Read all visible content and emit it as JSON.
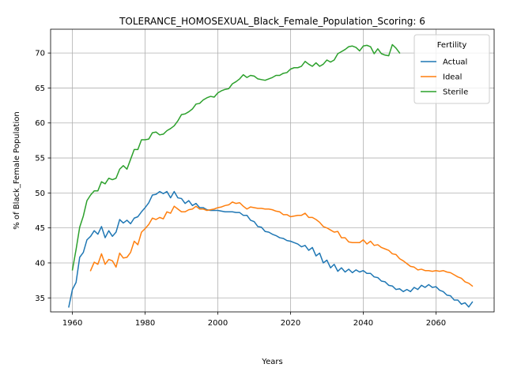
{
  "chart_data": {
    "type": "line",
    "title": "TOLERANCE_HOMOSEXUAL_Black_Female_Population_Scoring: 6",
    "xlabel": "Years",
    "ylabel": "% of Black_Female Population",
    "xlim": [
      1954,
      2076
    ],
    "ylim": [
      33.0,
      73.4
    ],
    "xticks": [
      1960,
      1980,
      2000,
      2020,
      2040,
      2060
    ],
    "yticks": [
      35,
      40,
      45,
      50,
      55,
      60,
      65,
      70
    ],
    "grid": true,
    "legend": {
      "title": "Fertility",
      "position": "top-right"
    },
    "series": [
      {
        "name": "Actual",
        "color": "#1f77b4",
        "points": [
          [
            1959,
            33.7
          ],
          [
            1960,
            36.2
          ],
          [
            1961,
            37.2
          ],
          [
            1962,
            40.8
          ],
          [
            1963,
            41.5
          ],
          [
            1964,
            43.3
          ],
          [
            1965,
            43.8
          ],
          [
            1966,
            44.6
          ],
          [
            1967,
            44.1
          ],
          [
            1968,
            45.2
          ],
          [
            1969,
            43.6
          ],
          [
            1970,
            44.6
          ],
          [
            1971,
            43.8
          ],
          [
            1972,
            44.4
          ],
          [
            1973,
            46.2
          ],
          [
            1974,
            45.7
          ],
          [
            1975,
            46.1
          ],
          [
            1976,
            45.6
          ],
          [
            1977,
            46.4
          ],
          [
            1978,
            46.6
          ],
          [
            1979,
            47.3
          ],
          [
            1980,
            47.9
          ],
          [
            1981,
            48.6
          ],
          [
            1982,
            49.7
          ],
          [
            1983,
            49.8
          ],
          [
            1984,
            50.2
          ],
          [
            1985,
            49.9
          ],
          [
            1986,
            50.2
          ],
          [
            1987,
            49.3
          ],
          [
            1988,
            50.2
          ],
          [
            1989,
            49.3
          ],
          [
            1990,
            49.2
          ],
          [
            1991,
            48.5
          ],
          [
            1992,
            48.9
          ],
          [
            1993,
            48.2
          ],
          [
            1994,
            48.5
          ],
          [
            1995,
            47.9
          ],
          [
            1996,
            47.9
          ],
          [
            1997,
            47.6
          ],
          [
            1998,
            47.5
          ],
          [
            1999,
            47.5
          ],
          [
            2000,
            47.5
          ],
          [
            2001,
            47.4
          ],
          [
            2002,
            47.3
          ],
          [
            2003,
            47.3
          ],
          [
            2004,
            47.3
          ],
          [
            2005,
            47.2
          ],
          [
            2006,
            47.2
          ],
          [
            2007,
            46.8
          ],
          [
            2008,
            46.8
          ],
          [
            2009,
            46.1
          ],
          [
            2010,
            45.9
          ],
          [
            2011,
            45.2
          ],
          [
            2012,
            45.1
          ],
          [
            2013,
            44.5
          ],
          [
            2014,
            44.4
          ],
          [
            2015,
            44.1
          ],
          [
            2016,
            43.9
          ],
          [
            2017,
            43.6
          ],
          [
            2018,
            43.5
          ],
          [
            2019,
            43.2
          ],
          [
            2020,
            43.1
          ],
          [
            2021,
            42.9
          ],
          [
            2022,
            42.7
          ],
          [
            2023,
            42.3
          ],
          [
            2024,
            42.5
          ],
          [
            2025,
            41.8
          ],
          [
            2026,
            42.2
          ],
          [
            2027,
            41.0
          ],
          [
            2028,
            41.4
          ],
          [
            2029,
            40.0
          ],
          [
            2030,
            40.4
          ],
          [
            2031,
            39.3
          ],
          [
            2032,
            39.8
          ],
          [
            2033,
            38.8
          ],
          [
            2034,
            39.3
          ],
          [
            2035,
            38.7
          ],
          [
            2036,
            39.1
          ],
          [
            2037,
            38.6
          ],
          [
            2038,
            39.0
          ],
          [
            2039,
            38.7
          ],
          [
            2040,
            38.9
          ],
          [
            2041,
            38.5
          ],
          [
            2042,
            38.5
          ],
          [
            2043,
            38.0
          ],
          [
            2044,
            37.9
          ],
          [
            2045,
            37.4
          ],
          [
            2046,
            37.3
          ],
          [
            2047,
            36.8
          ],
          [
            2048,
            36.7
          ],
          [
            2049,
            36.2
          ],
          [
            2050,
            36.3
          ],
          [
            2051,
            35.9
          ],
          [
            2052,
            36.2
          ],
          [
            2053,
            35.9
          ],
          [
            2054,
            36.5
          ],
          [
            2055,
            36.2
          ],
          [
            2056,
            36.8
          ],
          [
            2057,
            36.5
          ],
          [
            2058,
            36.9
          ],
          [
            2059,
            36.5
          ],
          [
            2060,
            36.6
          ],
          [
            2061,
            36.1
          ],
          [
            2062,
            35.9
          ],
          [
            2063,
            35.4
          ],
          [
            2064,
            35.3
          ],
          [
            2065,
            34.7
          ],
          [
            2066,
            34.7
          ],
          [
            2067,
            34.1
          ],
          [
            2068,
            34.3
          ],
          [
            2069,
            33.7
          ],
          [
            2070,
            34.4
          ]
        ]
      },
      {
        "name": "Ideal",
        "color": "#ff7f0e",
        "points": [
          [
            1965,
            38.9
          ],
          [
            1966,
            40.1
          ],
          [
            1967,
            39.8
          ],
          [
            1968,
            41.3
          ],
          [
            1969,
            39.8
          ],
          [
            1970,
            40.5
          ],
          [
            1971,
            40.3
          ],
          [
            1972,
            39.4
          ],
          [
            1973,
            41.4
          ],
          [
            1974,
            40.7
          ],
          [
            1975,
            40.8
          ],
          [
            1976,
            41.5
          ],
          [
            1977,
            43.1
          ],
          [
            1978,
            42.6
          ],
          [
            1979,
            44.4
          ],
          [
            1980,
            44.9
          ],
          [
            1981,
            45.5
          ],
          [
            1982,
            46.4
          ],
          [
            1983,
            46.2
          ],
          [
            1984,
            46.5
          ],
          [
            1985,
            46.3
          ],
          [
            1986,
            47.3
          ],
          [
            1987,
            47.1
          ],
          [
            1988,
            48.1
          ],
          [
            1989,
            47.7
          ],
          [
            1990,
            47.3
          ],
          [
            1991,
            47.3
          ],
          [
            1992,
            47.6
          ],
          [
            1993,
            47.7
          ],
          [
            1994,
            48.1
          ],
          [
            1995,
            47.7
          ],
          [
            1996,
            47.7
          ],
          [
            1997,
            47.5
          ],
          [
            1998,
            47.6
          ],
          [
            1999,
            47.7
          ],
          [
            2000,
            47.9
          ],
          [
            2001,
            48.0
          ],
          [
            2002,
            48.2
          ],
          [
            2003,
            48.3
          ],
          [
            2004,
            48.7
          ],
          [
            2005,
            48.5
          ],
          [
            2006,
            48.6
          ],
          [
            2007,
            48.1
          ],
          [
            2008,
            47.7
          ],
          [
            2009,
            48.0
          ],
          [
            2010,
            47.9
          ],
          [
            2011,
            47.8
          ],
          [
            2012,
            47.8
          ],
          [
            2013,
            47.7
          ],
          [
            2014,
            47.7
          ],
          [
            2015,
            47.6
          ],
          [
            2016,
            47.4
          ],
          [
            2017,
            47.3
          ],
          [
            2018,
            46.9
          ],
          [
            2019,
            46.9
          ],
          [
            2020,
            46.6
          ],
          [
            2021,
            46.7
          ],
          [
            2022,
            46.8
          ],
          [
            2023,
            46.8
          ],
          [
            2024,
            47.1
          ],
          [
            2025,
            46.5
          ],
          [
            2026,
            46.5
          ],
          [
            2027,
            46.2
          ],
          [
            2028,
            45.8
          ],
          [
            2029,
            45.2
          ],
          [
            2030,
            45.0
          ],
          [
            2031,
            44.7
          ],
          [
            2032,
            44.4
          ],
          [
            2033,
            44.5
          ],
          [
            2034,
            43.6
          ],
          [
            2035,
            43.6
          ],
          [
            2036,
            43.0
          ],
          [
            2037,
            42.9
          ],
          [
            2038,
            42.9
          ],
          [
            2039,
            42.9
          ],
          [
            2040,
            43.3
          ],
          [
            2041,
            42.7
          ],
          [
            2042,
            43.1
          ],
          [
            2043,
            42.5
          ],
          [
            2044,
            42.6
          ],
          [
            2045,
            42.2
          ],
          [
            2046,
            42.0
          ],
          [
            2047,
            41.8
          ],
          [
            2048,
            41.3
          ],
          [
            2049,
            41.2
          ],
          [
            2050,
            40.6
          ],
          [
            2051,
            40.3
          ],
          [
            2052,
            39.9
          ],
          [
            2053,
            39.5
          ],
          [
            2054,
            39.4
          ],
          [
            2055,
            39.0
          ],
          [
            2056,
            39.1
          ],
          [
            2057,
            38.9
          ],
          [
            2058,
            38.9
          ],
          [
            2059,
            38.8
          ],
          [
            2060,
            38.9
          ],
          [
            2061,
            38.8
          ],
          [
            2062,
            38.9
          ],
          [
            2063,
            38.7
          ],
          [
            2064,
            38.6
          ],
          [
            2065,
            38.3
          ],
          [
            2066,
            38.0
          ],
          [
            2067,
            37.8
          ],
          [
            2068,
            37.3
          ],
          [
            2069,
            37.1
          ],
          [
            2070,
            36.7
          ]
        ]
      },
      {
        "name": "Sterile",
        "color": "#2ca02c",
        "points": [
          [
            1960,
            39.0
          ],
          [
            1961,
            41.9
          ],
          [
            1962,
            45.1
          ],
          [
            1963,
            46.7
          ],
          [
            1964,
            48.9
          ],
          [
            1965,
            49.7
          ],
          [
            1966,
            50.3
          ],
          [
            1967,
            50.3
          ],
          [
            1968,
            51.6
          ],
          [
            1969,
            51.3
          ],
          [
            1970,
            52.1
          ],
          [
            1971,
            51.9
          ],
          [
            1972,
            52.1
          ],
          [
            1973,
            53.4
          ],
          [
            1974,
            53.9
          ],
          [
            1975,
            53.4
          ],
          [
            1976,
            54.8
          ],
          [
            1977,
            56.2
          ],
          [
            1978,
            56.2
          ],
          [
            1979,
            57.6
          ],
          [
            1980,
            57.6
          ],
          [
            1981,
            57.7
          ],
          [
            1982,
            58.6
          ],
          [
            1983,
            58.7
          ],
          [
            1984,
            58.3
          ],
          [
            1985,
            58.4
          ],
          [
            1986,
            58.9
          ],
          [
            1987,
            59.2
          ],
          [
            1988,
            59.6
          ],
          [
            1989,
            60.3
          ],
          [
            1990,
            61.2
          ],
          [
            1991,
            61.3
          ],
          [
            1992,
            61.6
          ],
          [
            1993,
            62.0
          ],
          [
            1994,
            62.7
          ],
          [
            1995,
            62.8
          ],
          [
            1996,
            63.3
          ],
          [
            1997,
            63.6
          ],
          [
            1998,
            63.8
          ],
          [
            1999,
            63.7
          ],
          [
            2000,
            64.3
          ],
          [
            2001,
            64.6
          ],
          [
            2002,
            64.8
          ],
          [
            2003,
            64.9
          ],
          [
            2004,
            65.6
          ],
          [
            2005,
            65.9
          ],
          [
            2006,
            66.3
          ],
          [
            2007,
            66.9
          ],
          [
            2008,
            66.5
          ],
          [
            2009,
            66.8
          ],
          [
            2010,
            66.7
          ],
          [
            2011,
            66.3
          ],
          [
            2012,
            66.2
          ],
          [
            2013,
            66.1
          ],
          [
            2014,
            66.3
          ],
          [
            2015,
            66.5
          ],
          [
            2016,
            66.8
          ],
          [
            2017,
            66.8
          ],
          [
            2018,
            67.1
          ],
          [
            2019,
            67.2
          ],
          [
            2020,
            67.7
          ],
          [
            2021,
            67.9
          ],
          [
            2022,
            67.9
          ],
          [
            2023,
            68.1
          ],
          [
            2024,
            68.8
          ],
          [
            2025,
            68.4
          ],
          [
            2026,
            68.1
          ],
          [
            2027,
            68.6
          ],
          [
            2028,
            68.1
          ],
          [
            2029,
            68.4
          ],
          [
            2030,
            69.0
          ],
          [
            2031,
            68.7
          ],
          [
            2032,
            69.0
          ],
          [
            2033,
            69.9
          ],
          [
            2034,
            70.2
          ],
          [
            2035,
            70.5
          ],
          [
            2036,
            70.9
          ],
          [
            2037,
            71.0
          ],
          [
            2038,
            70.8
          ],
          [
            2039,
            70.3
          ],
          [
            2040,
            71.0
          ],
          [
            2041,
            71.1
          ],
          [
            2042,
            70.9
          ],
          [
            2043,
            69.9
          ],
          [
            2044,
            70.6
          ],
          [
            2045,
            69.9
          ],
          [
            2046,
            69.7
          ],
          [
            2047,
            69.6
          ],
          [
            2048,
            71.2
          ],
          [
            2049,
            70.7
          ],
          [
            2050,
            70.0
          ]
        ]
      }
    ]
  }
}
